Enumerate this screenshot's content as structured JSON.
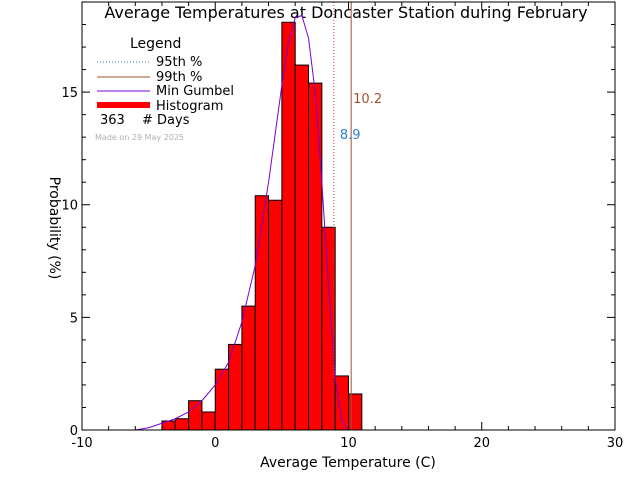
{
  "chart_data": {
    "type": "bar",
    "title": "Average Temperatures at Doncaster Station during February",
    "xlabel": "Average Temperature (C)",
    "ylabel": "Probability (%)",
    "xlim": [
      -10,
      30
    ],
    "ylim": [
      0,
      19
    ],
    "xticks": [
      -10,
      0,
      10,
      20,
      30
    ],
    "yticks": [
      0,
      5,
      10,
      15
    ],
    "grid": false,
    "legend_position": "top-left",
    "legend": {
      "title": "Legend",
      "entries": [
        "95th %",
        "99th %",
        "Min Gumbel",
        "Histogram"
      ],
      "days_count": "363",
      "days_label": "# Days",
      "made_on": "Made on 29 May 2025"
    },
    "histogram": {
      "bin_width": 1,
      "bins_left": [
        -4,
        -3,
        -2,
        -1,
        0,
        1,
        2,
        3,
        4,
        5,
        6,
        7,
        8,
        9,
        10
      ],
      "values": [
        0.4,
        0.5,
        1.3,
        0.8,
        2.7,
        3.8,
        5.5,
        10.4,
        10.2,
        18.1,
        16.2,
        15.4,
        9.0,
        2.4,
        1.6
      ],
      "color": "#ff0000"
    },
    "gumbel_curve": {
      "name": "Min Gumbel",
      "color": "#7b00d4",
      "x": [
        -6,
        -5,
        -4,
        -3,
        -2,
        -1,
        0,
        1,
        2,
        3,
        4,
        5,
        5.5,
        6,
        6.5,
        7,
        7.5,
        8,
        8.5,
        9,
        9.5,
        10
      ],
      "y": [
        0.0,
        0.1,
        0.3,
        0.5,
        0.8,
        1.3,
        2.0,
        3.0,
        4.8,
        7.3,
        11.0,
        15.3,
        17.2,
        18.3,
        18.4,
        17.4,
        15.0,
        11.0,
        6.4,
        2.3,
        0.4,
        0.0
      ]
    },
    "percentiles": [
      {
        "name": "95th %",
        "value": 8.9,
        "label": "8.9",
        "color": "#d03a2a",
        "style": "dotted"
      },
      {
        "name": "99th %",
        "value": 10.2,
        "label": "10.2",
        "color": "#a0522d",
        "style": "solid"
      }
    ]
  }
}
